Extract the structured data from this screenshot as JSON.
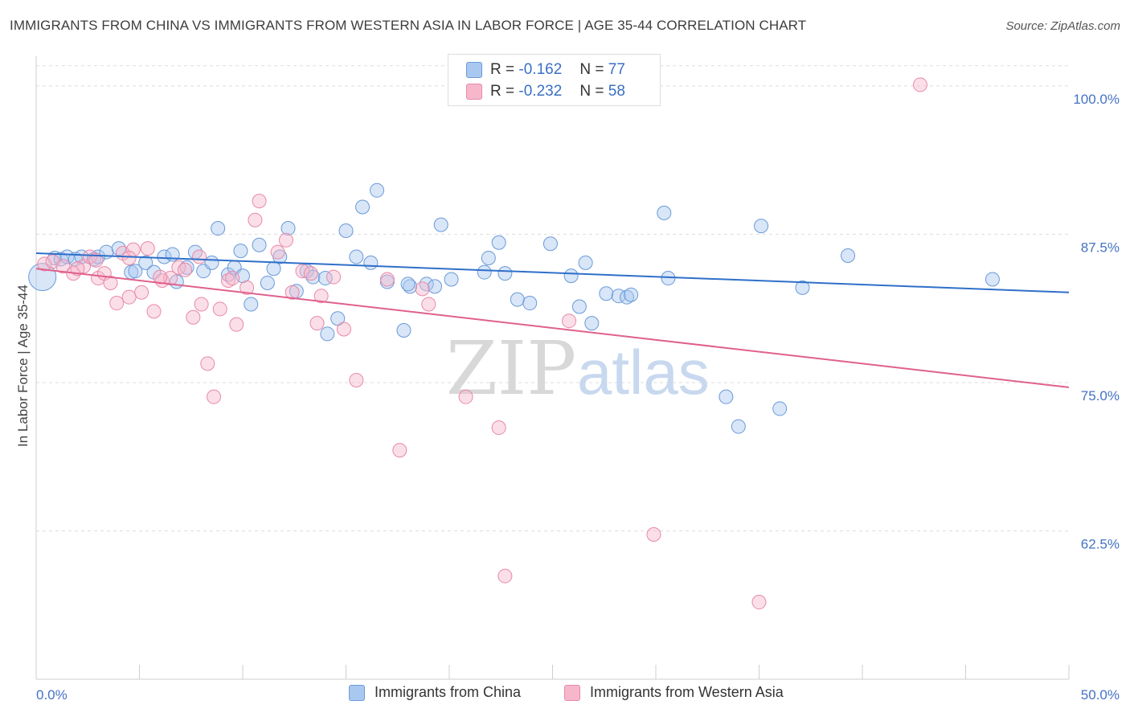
{
  "title": "IMMIGRANTS FROM CHINA VS IMMIGRANTS FROM WESTERN ASIA IN LABOR FORCE | AGE 35-44 CORRELATION CHART",
  "source": "Source: ZipAtlas.com",
  "watermark": "ZIPatlas",
  "legend": {
    "r_label": "R =",
    "n_label": "N =",
    "series1": {
      "r": "-0.162",
      "n": "77"
    },
    "series2": {
      "r": "-0.232",
      "n": "58"
    }
  },
  "colors": {
    "china_fill": "#a9c8f0",
    "china_stroke": "#6a9ad8",
    "china_line": "#2f6fc9",
    "wasia_fill": "#f7b7cb",
    "wasia_stroke": "#e889a8",
    "wasia_line": "#e0608c",
    "grid": "#dddddd",
    "tick_text": "#4472c4"
  },
  "chart_data": {
    "type": "scatter",
    "ylabel": "In Labor Force | Age 35-44",
    "xlim": [
      0,
      50
    ],
    "ylim": [
      50,
      102.5
    ],
    "y_ticks": [
      {
        "value": 100,
        "label": "100.0%"
      },
      {
        "value": 87.5,
        "label": "87.5%"
      },
      {
        "value": 75,
        "label": "75.0%"
      },
      {
        "value": 62.5,
        "label": "62.5%"
      }
    ],
    "x_tick_labels": {
      "left": "0.0%",
      "right": "50.0%"
    },
    "series": [
      {
        "name": "Immigrants from China",
        "r": -0.162,
        "n": 77,
        "trend": {
          "x": [
            0,
            50
          ],
          "y": [
            85.9,
            82.6
          ]
        },
        "points": [
          [
            0.3,
            83.9
          ],
          [
            0.9,
            85.5
          ],
          [
            1.2,
            85.4
          ],
          [
            1.5,
            85.6
          ],
          [
            1.9,
            85.4
          ],
          [
            2.2,
            85.6
          ],
          [
            2.8,
            85.4
          ],
          [
            3.0,
            85.6
          ],
          [
            3.4,
            86.0
          ],
          [
            4.0,
            86.3
          ],
          [
            4.6,
            84.3
          ],
          [
            4.8,
            84.4
          ],
          [
            5.3,
            85.1
          ],
          [
            5.7,
            84.3
          ],
          [
            6.2,
            85.6
          ],
          [
            6.6,
            85.8
          ],
          [
            6.8,
            83.5
          ],
          [
            7.3,
            84.7
          ],
          [
            7.7,
            86.0
          ],
          [
            8.1,
            84.4
          ],
          [
            8.5,
            85.1
          ],
          [
            8.8,
            88.0
          ],
          [
            9.3,
            84.1
          ],
          [
            9.6,
            84.7
          ],
          [
            9.9,
            86.1
          ],
          [
            10.4,
            81.6
          ],
          [
            10.8,
            86.6
          ],
          [
            11.2,
            83.4
          ],
          [
            11.5,
            84.6
          ],
          [
            11.8,
            85.6
          ],
          [
            12.2,
            88.0
          ],
          [
            12.6,
            82.7
          ],
          [
            13.1,
            84.4
          ],
          [
            13.4,
            83.9
          ],
          [
            14.0,
            83.8
          ],
          [
            14.6,
            80.4
          ],
          [
            14.1,
            79.1
          ],
          [
            15.0,
            87.8
          ],
          [
            15.5,
            85.6
          ],
          [
            15.8,
            89.8
          ],
          [
            16.2,
            85.1
          ],
          [
            16.5,
            91.2
          ],
          [
            17.0,
            83.5
          ],
          [
            17.8,
            79.4
          ],
          [
            18.1,
            83.1
          ],
          [
            18.9,
            83.3
          ],
          [
            19.3,
            83.1
          ],
          [
            19.6,
            88.3
          ],
          [
            20.1,
            83.7
          ],
          [
            21.7,
            84.3
          ],
          [
            21.9,
            85.5
          ],
          [
            22.4,
            86.8
          ],
          [
            22.7,
            84.2
          ],
          [
            23.3,
            82.0
          ],
          [
            23.9,
            81.7
          ],
          [
            24.9,
            86.7
          ],
          [
            25.9,
            84.0
          ],
          [
            26.3,
            81.4
          ],
          [
            26.6,
            85.1
          ],
          [
            26.9,
            80.0
          ],
          [
            27.6,
            82.5
          ],
          [
            28.2,
            82.3
          ],
          [
            28.6,
            82.2
          ],
          [
            28.8,
            82.4
          ],
          [
            30.4,
            89.3
          ],
          [
            30.6,
            83.8
          ],
          [
            33.4,
            73.8
          ],
          [
            34.0,
            71.3
          ],
          [
            35.1,
            88.2
          ],
          [
            36.0,
            72.8
          ],
          [
            37.1,
            83.0
          ],
          [
            39.3,
            85.7
          ],
          [
            46.3,
            83.7
          ],
          [
            21.0,
            99.8
          ],
          [
            29.8,
            100.0
          ],
          [
            18.0,
            83.3
          ],
          [
            10.0,
            84.0
          ]
        ],
        "sizes_note": "one point at x≈0.3 drawn larger"
      },
      {
        "name": "Immigrants from Western Asia",
        "r": -0.232,
        "n": 58,
        "trend": {
          "x": [
            0,
            50
          ],
          "y": [
            84.6,
            74.6
          ]
        },
        "points": [
          [
            0.4,
            85.0
          ],
          [
            0.8,
            85.2
          ],
          [
            1.3,
            84.8
          ],
          [
            1.8,
            84.2
          ],
          [
            2.3,
            84.8
          ],
          [
            2.6,
            85.6
          ],
          [
            2.9,
            85.3
          ],
          [
            3.0,
            83.8
          ],
          [
            3.3,
            84.2
          ],
          [
            3.6,
            83.4
          ],
          [
            3.9,
            81.7
          ],
          [
            4.2,
            85.9
          ],
          [
            4.5,
            82.2
          ],
          [
            4.7,
            86.2
          ],
          [
            5.1,
            82.6
          ],
          [
            5.4,
            86.3
          ],
          [
            5.7,
            81.0
          ],
          [
            6.1,
            83.6
          ],
          [
            6.5,
            83.8
          ],
          [
            6.9,
            84.7
          ],
          [
            7.2,
            84.5
          ],
          [
            7.6,
            80.5
          ],
          [
            7.9,
            85.6
          ],
          [
            8.0,
            81.6
          ],
          [
            8.3,
            76.6
          ],
          [
            8.6,
            73.8
          ],
          [
            8.9,
            81.2
          ],
          [
            9.3,
            83.6
          ],
          [
            9.7,
            79.9
          ],
          [
            10.2,
            83.0
          ],
          [
            10.6,
            88.7
          ],
          [
            10.8,
            90.3
          ],
          [
            11.7,
            86.0
          ],
          [
            12.1,
            87.0
          ],
          [
            12.4,
            82.6
          ],
          [
            12.9,
            84.4
          ],
          [
            13.3,
            84.2
          ],
          [
            13.6,
            80.0
          ],
          [
            13.8,
            82.3
          ],
          [
            14.4,
            83.9
          ],
          [
            14.9,
            79.5
          ],
          [
            15.5,
            75.2
          ],
          [
            17.0,
            83.7
          ],
          [
            17.6,
            69.3
          ],
          [
            18.7,
            82.9
          ],
          [
            19.0,
            81.6
          ],
          [
            20.8,
            73.8
          ],
          [
            22.4,
            71.2
          ],
          [
            22.7,
            58.7
          ],
          [
            25.8,
            80.2
          ],
          [
            29.9,
            62.2
          ],
          [
            35.0,
            56.5
          ],
          [
            42.8,
            100.1
          ],
          [
            21.0,
            100.0
          ],
          [
            6.0,
            83.9
          ],
          [
            9.5,
            83.8
          ],
          [
            4.5,
            85.5
          ],
          [
            2.0,
            84.6
          ]
        ]
      }
    ]
  }
}
